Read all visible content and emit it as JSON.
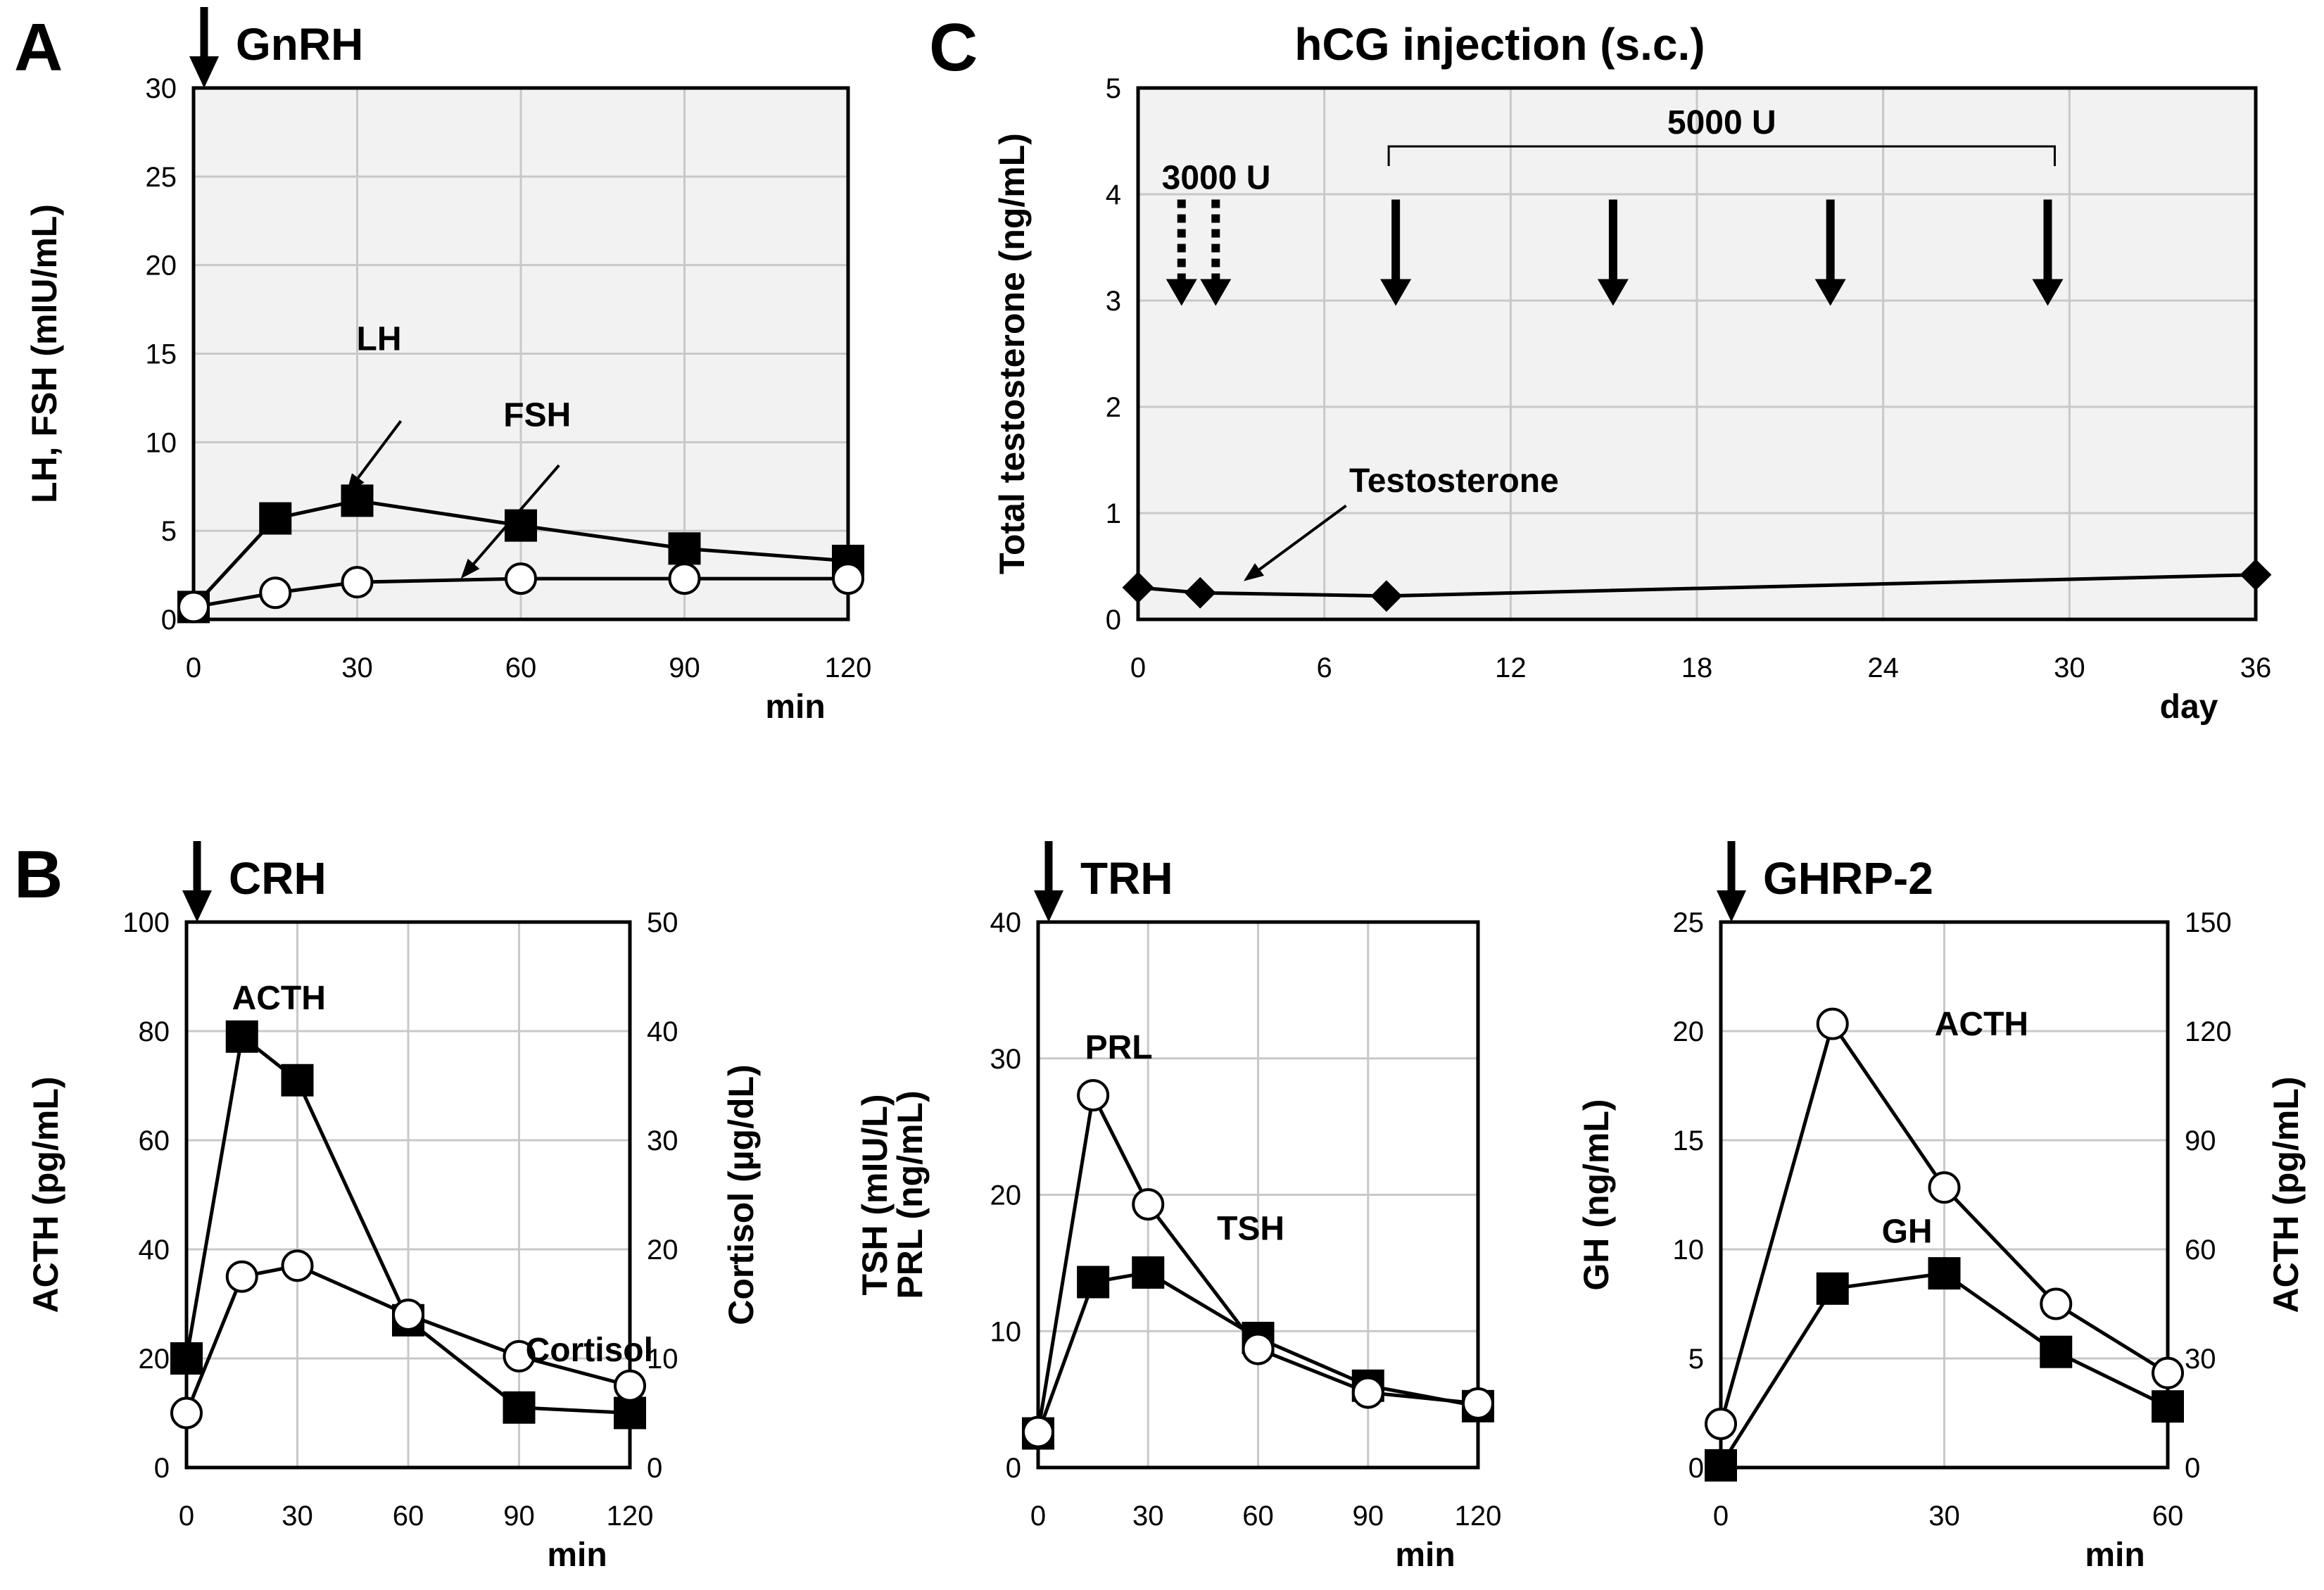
{
  "panel_letters": {
    "a": "A",
    "b": "B",
    "c": "C"
  },
  "chart_data": [
    {
      "id": "A",
      "type": "line",
      "stimulus": "GnRH",
      "x": [
        0,
        15,
        30,
        60,
        90,
        120
      ],
      "xlim": [
        0,
        120
      ],
      "xticks": [
        0,
        30,
        60,
        90,
        120
      ],
      "xlabel": "min",
      "ylabel": "LH, FSH (mIU/mL)",
      "ylim": [
        0,
        30
      ],
      "yticks": [
        0,
        5,
        10,
        15,
        20,
        25,
        30
      ],
      "grid": true,
      "background": "#f2f2f2",
      "series": [
        {
          "name": "LH",
          "marker": "square",
          "values": [
            0.7,
            5.7,
            6.7,
            5.3,
            4.0,
            3.3
          ]
        },
        {
          "name": "FSH",
          "marker": "circle",
          "values": [
            0.7,
            1.5,
            2.1,
            2.3,
            2.3,
            2.3
          ]
        }
      ]
    },
    {
      "id": "C",
      "type": "line",
      "title": "hCG injection (s.c.)",
      "x": [
        0,
        2,
        8,
        36
      ],
      "xlim": [
        0,
        36
      ],
      "xticks": [
        0,
        6,
        12,
        18,
        24,
        30,
        36
      ],
      "xlabel": "day",
      "ylabel": "Total testosterone (ng/mL)",
      "ylim": [
        0,
        5
      ],
      "yticks": [
        0,
        1,
        2,
        3,
        4,
        5
      ],
      "grid": true,
      "background": "#f2f2f2",
      "series": [
        {
          "name": "Testosterone",
          "marker": "diamond",
          "values": [
            0.3,
            0.25,
            0.22,
            0.42
          ]
        }
      ],
      "injections": [
        {
          "label": "3000 U",
          "days": [
            1.4,
            2.5
          ],
          "style": "dashed"
        },
        {
          "label": "5000 U",
          "days": [
            8.3,
            15.3,
            22.3,
            29.3
          ],
          "style": "solid"
        }
      ]
    },
    {
      "id": "B-CRH",
      "type": "line",
      "stimulus": "CRH",
      "x": [
        0,
        15,
        30,
        60,
        90,
        120
      ],
      "xlim": [
        0,
        120
      ],
      "xticks": [
        0,
        30,
        60,
        90,
        120
      ],
      "xlabel": "min",
      "ylabel": "ACTH (pg/mL)",
      "ylim": [
        0,
        100
      ],
      "yticks": [
        0,
        20,
        40,
        60,
        80,
        100
      ],
      "y2label": "Cortisol (µg/dL)",
      "y2lim": [
        0,
        50
      ],
      "y2ticks": [
        0,
        10,
        20,
        30,
        40,
        50
      ],
      "grid": true,
      "background": "#ffffff",
      "series": [
        {
          "name": "ACTH",
          "marker": "square",
          "axis": "left",
          "values": [
            20,
            79,
            71,
            27,
            11,
            10
          ]
        },
        {
          "name": "Cortisol",
          "marker": "circle",
          "axis": "right",
          "values": [
            5,
            17.5,
            18.5,
            14,
            10.2,
            7.5
          ]
        }
      ]
    },
    {
      "id": "B-TRH",
      "type": "line",
      "stimulus": "TRH",
      "x": [
        0,
        15,
        30,
        60,
        90,
        120
      ],
      "xlim": [
        0,
        120
      ],
      "xticks": [
        0,
        30,
        60,
        90,
        120
      ],
      "xlabel": "min",
      "ylabel_lines": [
        "TSH (mIU/L)",
        "PRL (ng/mL)"
      ],
      "ylim": [
        0,
        40
      ],
      "yticks": [
        0,
        10,
        20,
        30,
        40
      ],
      "grid": true,
      "background": "#ffffff",
      "series": [
        {
          "name": "TSH",
          "marker": "square",
          "values": [
            2.5,
            13.6,
            14.3,
            9.5,
            6.0,
            4.5
          ]
        },
        {
          "name": "PRL",
          "marker": "circle",
          "values": [
            2.6,
            27.3,
            19.3,
            8.7,
            5.5,
            4.7
          ]
        }
      ]
    },
    {
      "id": "B-GHRP2",
      "type": "line",
      "stimulus": "GHRP-2",
      "x": [
        0,
        15,
        30,
        45,
        60
      ],
      "xlim": [
        0,
        60
      ],
      "xticks": [
        0,
        30,
        60
      ],
      "xlabel": "min",
      "ylabel": "GH (ng/mL)",
      "ylim": [
        0,
        25
      ],
      "yticks": [
        0,
        5,
        10,
        15,
        20,
        25
      ],
      "y2label": "ACTH (pg/mL)",
      "y2lim": [
        0,
        150
      ],
      "y2ticks": [
        0,
        30,
        60,
        90,
        120,
        150
      ],
      "grid": true,
      "background": "#ffffff",
      "series": [
        {
          "name": "GH",
          "marker": "square",
          "axis": "left",
          "values": [
            0.1,
            8.2,
            8.9,
            5.3,
            2.8
          ]
        },
        {
          "name": "ACTH",
          "marker": "circle",
          "axis": "right",
          "values": [
            12,
            122,
            77,
            45,
            26
          ]
        }
      ]
    }
  ]
}
